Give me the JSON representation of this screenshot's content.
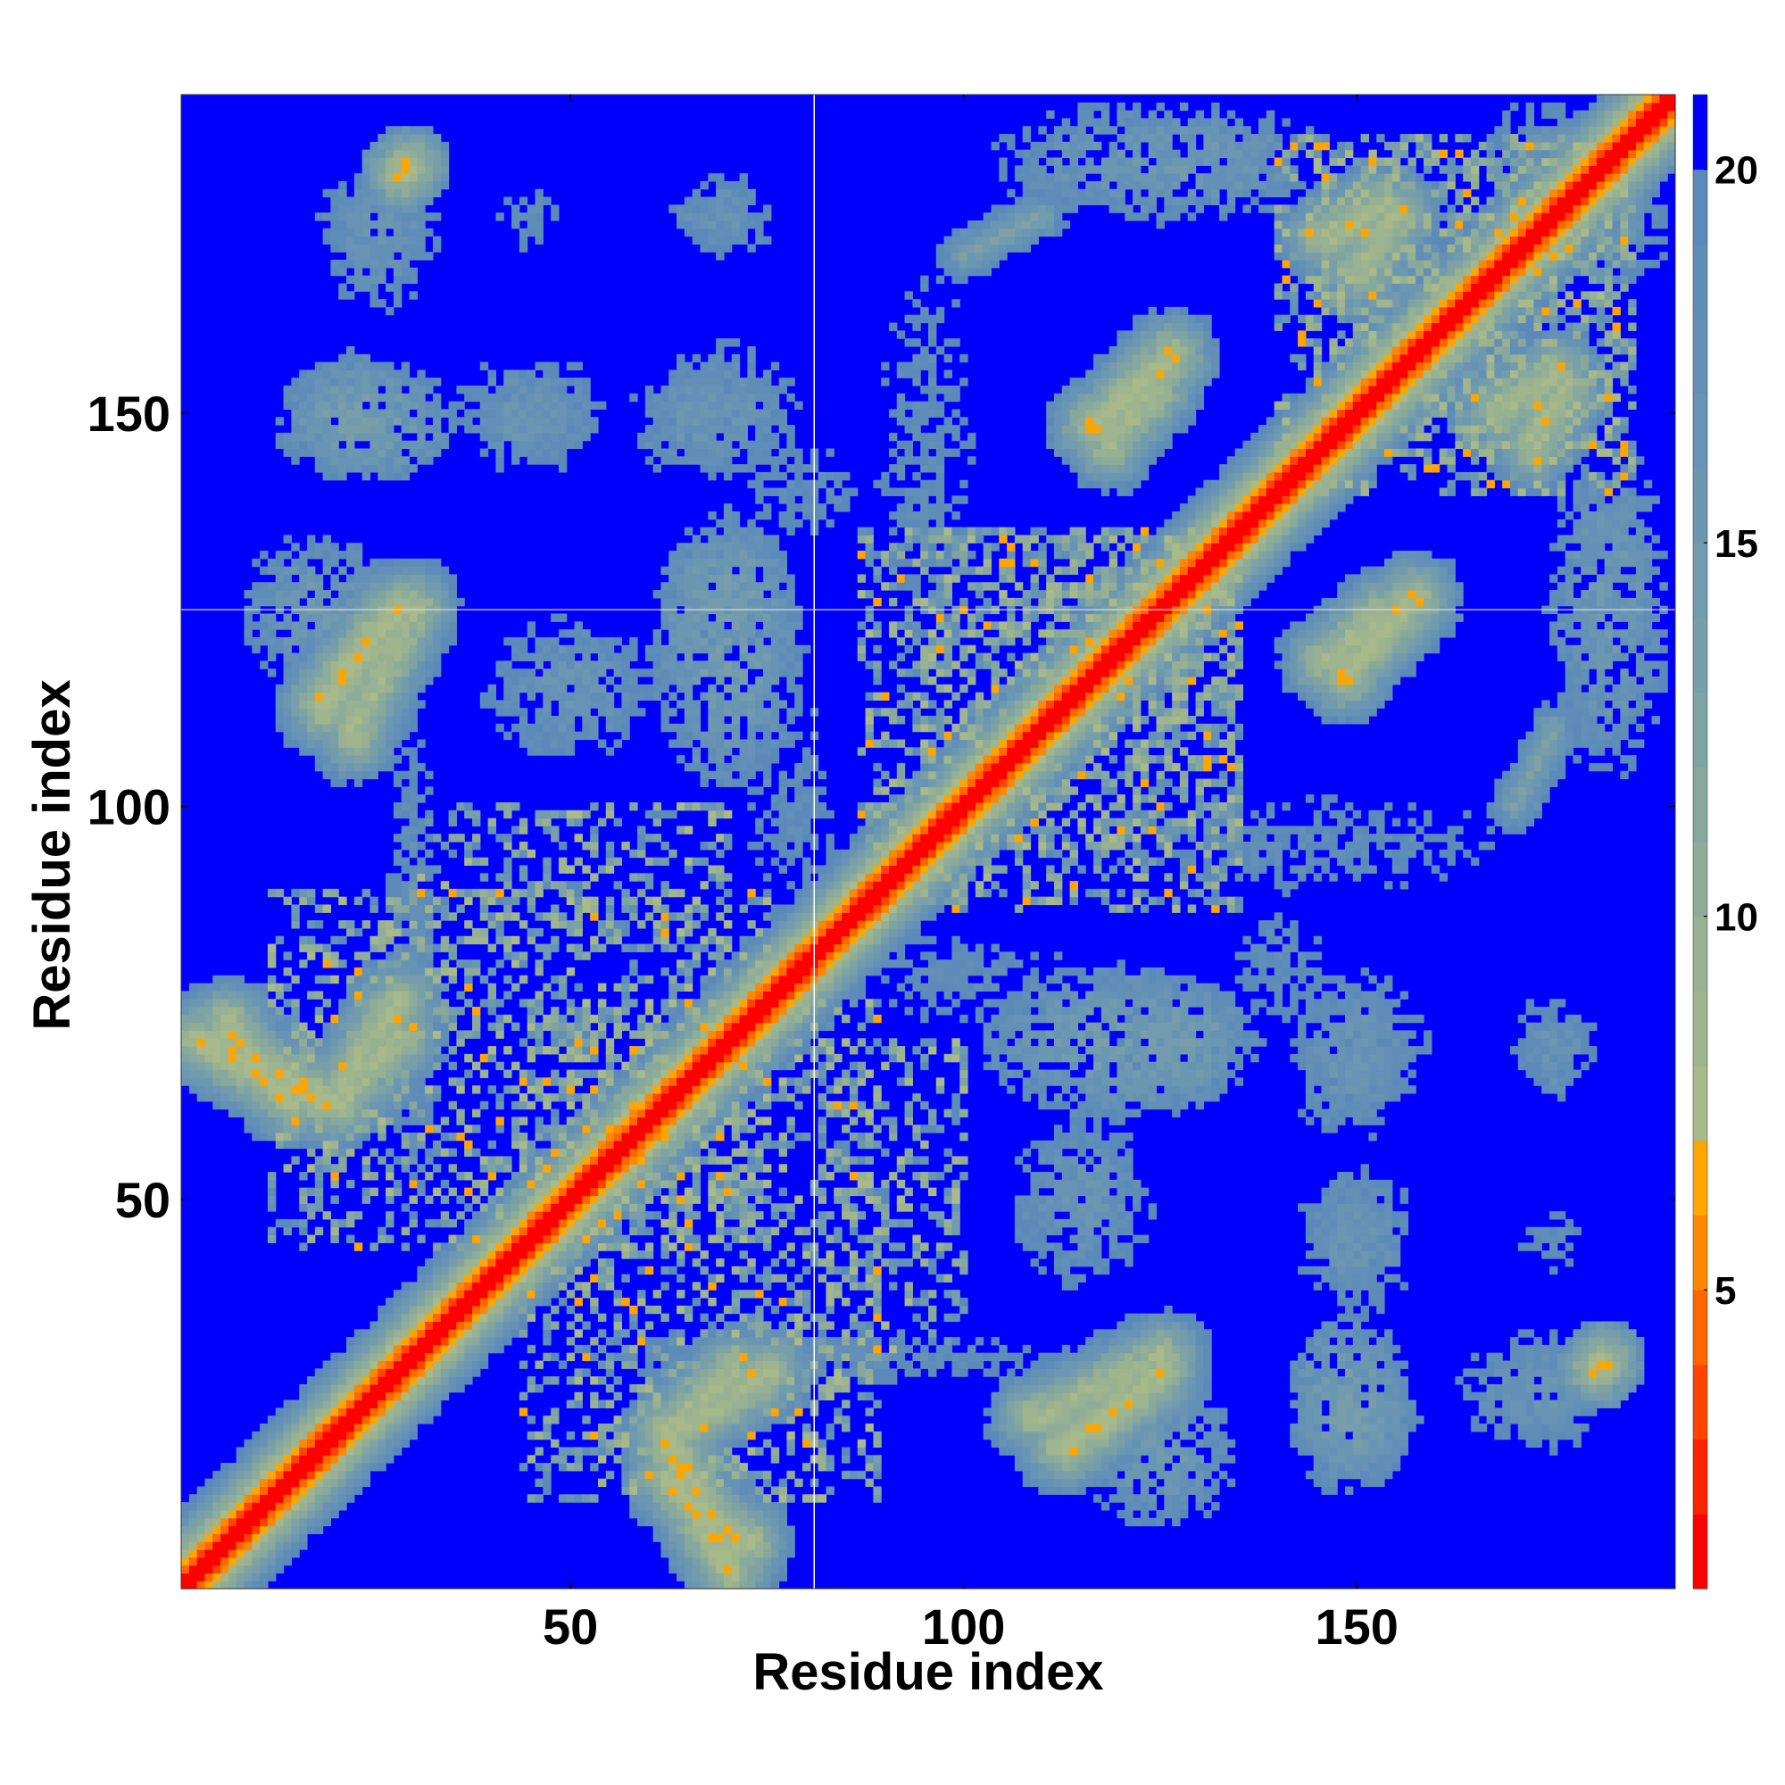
{
  "chart_data": {
    "type": "heatmap",
    "title": "",
    "xlabel": "Residue index",
    "ylabel": "Residue index",
    "n_residues": 190,
    "xlim": [
      0.5,
      190.5
    ],
    "ylim": [
      0.5,
      190.5
    ],
    "x_ticks": [
      50,
      100,
      150
    ],
    "y_ticks": [
      50,
      100,
      150
    ],
    "colorbar": {
      "range": [
        1,
        21
      ],
      "ticks": [
        5,
        10,
        15,
        20
      ],
      "levels": [
        {
          "max": 2,
          "color": "#ff0000"
        },
        {
          "max": 3,
          "color": "#ff2200"
        },
        {
          "max": 4,
          "color": "#ff4400"
        },
        {
          "max": 5,
          "color": "#ff6600"
        },
        {
          "max": 6,
          "color": "#ff8800"
        },
        {
          "max": 7,
          "color": "#ffa500"
        },
        {
          "max": 8,
          "color": "#a8b98a"
        },
        {
          "max": 9,
          "color": "#9fb58e"
        },
        {
          "max": 10,
          "color": "#97b192"
        },
        {
          "max": 11,
          "color": "#8eac98"
        },
        {
          "max": 12,
          "color": "#86a89d"
        },
        {
          "max": 13,
          "color": "#7fa3a3"
        },
        {
          "max": 14,
          "color": "#789fa9"
        },
        {
          "max": 15,
          "color": "#729bad"
        },
        {
          "max": 16,
          "color": "#6c97b1"
        },
        {
          "max": 17,
          "color": "#6893b4"
        },
        {
          "max": 18,
          "color": "#648fb6"
        },
        {
          "max": 19,
          "color": "#608cb8"
        },
        {
          "max": 20,
          "color": "#5c89ba"
        },
        {
          "max": 21,
          "color": "#0000ff"
        }
      ]
    },
    "gap_residue": 81,
    "blocks": [
      [
        12,
        75,
        44,
        89,
        6.5
      ],
      [
        15,
        78,
        15,
        78,
        20.5
      ],
      [
        30,
        70,
        82,
        100,
        7.0
      ],
      [
        87,
        135,
        95,
        135,
        6.5
      ],
      [
        105,
        145,
        105,
        145,
        20.5
      ],
      [
        140,
        185,
        145,
        185,
        6.5
      ]
    ],
    "bands": [
      {
        "start": [
          2,
          70
        ],
        "end": [
          20,
          62
        ],
        "width": 2.5,
        "value": 5
      },
      {
        "start": [
          20,
          62
        ],
        "end": [
          28,
          75
        ],
        "width": 2.5,
        "value": 6
      },
      {
        "start": [
          22,
          108
        ],
        "end": [
          30,
          125
        ],
        "width": 2.5,
        "value": 6
      },
      {
        "start": [
          62,
          14
        ],
        "end": [
          72,
          6
        ],
        "width": 2.5,
        "value": 5
      },
      {
        "start": [
          62,
          20
        ],
        "end": [
          70,
          28
        ],
        "width": 2.5,
        "value": 6
      },
      {
        "start": [
          112,
          18
        ],
        "end": [
          125,
          28
        ],
        "width": 2.5,
        "value": 5
      },
      {
        "start": [
          116,
          148
        ],
        "end": [
          126,
          157
        ],
        "width": 2.5,
        "value": 5
      },
      {
        "start": [
          145,
          118
        ],
        "end": [
          152,
          124
        ],
        "width": 2.5,
        "value": 6
      },
      {
        "start": [
          167,
          150
        ],
        "end": [
          175,
          155
        ],
        "width": 2.5,
        "value": 6
      },
      {
        "start": [
          145,
          172
        ],
        "end": [
          152,
          176
        ],
        "width": 2.5,
        "value": 6
      },
      {
        "start": [
          170,
          100
        ],
        "end": [
          175,
          110
        ],
        "width": 3,
        "value": 12
      },
      {
        "start": [
          28,
          180
        ],
        "end": [
          29,
          181
        ],
        "width": 1.5,
        "value": 5
      }
    ],
    "blobs": [
      {
        "x": 24,
        "y": 149,
        "rx": 12,
        "ry": 8,
        "value": 13
      },
      {
        "x": 45,
        "y": 149,
        "rx": 10,
        "ry": 6,
        "value": 15
      },
      {
        "x": 65,
        "y": 149,
        "rx": 8,
        "ry": 8,
        "value": 15
      },
      {
        "x": 26,
        "y": 172,
        "rx": 8,
        "ry": 10,
        "value": 15
      },
      {
        "x": 68,
        "y": 175,
        "rx": 7,
        "ry": 5,
        "value": 16
      },
      {
        "x": 18,
        "y": 125,
        "rx": 10,
        "ry": 10,
        "value": 14
      },
      {
        "x": 70,
        "y": 128,
        "rx": 8,
        "ry": 8,
        "value": 13
      },
      {
        "x": 120,
        "y": 70,
        "rx": 18,
        "ry": 10,
        "value": 13
      },
      {
        "x": 150,
        "y": 70,
        "rx": 10,
        "ry": 10,
        "value": 15
      },
      {
        "x": 175,
        "y": 70,
        "rx": 6,
        "ry": 6,
        "value": 15
      },
      {
        "x": 150,
        "y": 45,
        "rx": 8,
        "ry": 10,
        "value": 15
      },
      {
        "x": 175,
        "y": 45,
        "rx": 6,
        "ry": 6,
        "value": 17
      },
      {
        "x": 150,
        "y": 22,
        "rx": 8,
        "ry": 8,
        "value": 13
      },
      {
        "x": 175,
        "y": 25,
        "rx": 6,
        "ry": 8,
        "value": 15
      },
      {
        "x": 180,
        "y": 28,
        "rx": 5,
        "ry": 4,
        "value": 12
      },
      {
        "x": 115,
        "y": 50,
        "rx": 10,
        "ry": 12,
        "value": 15
      },
      {
        "x": 125,
        "y": 182,
        "rx": 22,
        "ry": 8,
        "value": 14
      },
      {
        "x": 175,
        "y": 183,
        "rx": 10,
        "ry": 7,
        "value": 15
      },
      {
        "x": 80,
        "y": 140,
        "rx": 10,
        "ry": 8,
        "value": 17
      },
      {
        "x": 80,
        "y": 30,
        "rx": 40,
        "ry": 4,
        "value": 16
      },
      {
        "x": 100,
        "y": 78,
        "rx": 20,
        "ry": 8,
        "value": 17
      },
      {
        "x": 145,
        "y": 95,
        "rx": 35,
        "ry": 8,
        "value": 17
      }
    ]
  }
}
